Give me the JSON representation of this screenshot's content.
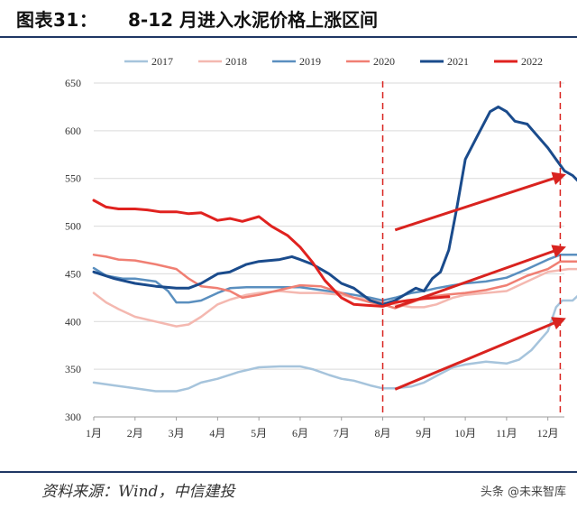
{
  "header": {
    "figure_label": "图表31：",
    "title": "8-12 月进入水泥价格上涨区间"
  },
  "footer": {
    "source": "资料来源：Wind，中信建投",
    "watermark": "头条 @未来智库"
  },
  "chart_data": {
    "type": "line",
    "title": "8-12 月进入水泥价格上涨区间",
    "xlabel": "",
    "ylabel": "",
    "ylim": [
      300,
      650
    ],
    "y_ticks": [
      300,
      350,
      400,
      450,
      500,
      550,
      600,
      650
    ],
    "x_range": [
      1,
      12.4
    ],
    "x_ticks": [
      {
        "x": 1,
        "label": "1月"
      },
      {
        "x": 2,
        "label": "2月"
      },
      {
        "x": 3,
        "label": "3月"
      },
      {
        "x": 4,
        "label": "4月"
      },
      {
        "x": 5,
        "label": "5月"
      },
      {
        "x": 6,
        "label": "6月"
      },
      {
        "x": 7,
        "label": "7月"
      },
      {
        "x": 8,
        "label": "8月"
      },
      {
        "x": 9,
        "label": "9月"
      },
      {
        "x": 10,
        "label": "10月"
      },
      {
        "x": 11,
        "label": "11月"
      },
      {
        "x": 12,
        "label": "12月"
      }
    ],
    "grid": "horizontal",
    "legend_position": "top",
    "series": [
      {
        "name": "2017",
        "color": "#a6c4dc",
        "width": 2.5,
        "points": [
          [
            1,
            336
          ],
          [
            1.5,
            333
          ],
          [
            2,
            330
          ],
          [
            2.5,
            327
          ],
          [
            3,
            327
          ],
          [
            3.3,
            330
          ],
          [
            3.6,
            336
          ],
          [
            4,
            340
          ],
          [
            4.5,
            347
          ],
          [
            5,
            352
          ],
          [
            5.5,
            353
          ],
          [
            6,
            353
          ],
          [
            6.3,
            350
          ],
          [
            6.7,
            344
          ],
          [
            7,
            340
          ],
          [
            7.3,
            338
          ],
          [
            7.7,
            333
          ],
          [
            8,
            330
          ],
          [
            8.3,
            330
          ],
          [
            8.7,
            332
          ],
          [
            9,
            336
          ],
          [
            9.3,
            343
          ],
          [
            9.7,
            352
          ],
          [
            10,
            355
          ],
          [
            10.5,
            358
          ],
          [
            11,
            356
          ],
          [
            11.3,
            360
          ],
          [
            11.6,
            370
          ],
          [
            12,
            390
          ],
          [
            12.2,
            415
          ],
          [
            12.35,
            422
          ],
          [
            12.6,
            422
          ],
          [
            12.8,
            430
          ]
        ]
      },
      {
        "name": "2018",
        "color": "#f4b8b0",
        "width": 2.5,
        "points": [
          [
            1,
            430
          ],
          [
            1.3,
            420
          ],
          [
            1.6,
            413
          ],
          [
            2,
            405
          ],
          [
            2.5,
            400
          ],
          [
            2.8,
            397
          ],
          [
            3,
            395
          ],
          [
            3.3,
            397
          ],
          [
            3.6,
            405
          ],
          [
            4,
            418
          ],
          [
            4.3,
            423
          ],
          [
            4.7,
            428
          ],
          [
            5,
            430
          ],
          [
            5.5,
            432
          ],
          [
            6,
            430
          ],
          [
            6.5,
            430
          ],
          [
            7,
            428
          ],
          [
            7.3,
            425
          ],
          [
            7.7,
            423
          ],
          [
            8,
            420
          ],
          [
            8.3,
            418
          ],
          [
            8.7,
            415
          ],
          [
            9,
            415
          ],
          [
            9.3,
            418
          ],
          [
            9.7,
            425
          ],
          [
            10,
            428
          ],
          [
            10.5,
            430
          ],
          [
            11,
            432
          ],
          [
            11.4,
            440
          ],
          [
            11.8,
            448
          ],
          [
            12,
            452
          ],
          [
            12.5,
            455
          ],
          [
            12.8,
            455
          ]
        ]
      },
      {
        "name": "2019",
        "color": "#5a8fbf",
        "width": 2.5,
        "points": [
          [
            1,
            456
          ],
          [
            1.3,
            448
          ],
          [
            1.7,
            445
          ],
          [
            2,
            445
          ],
          [
            2.5,
            442
          ],
          [
            2.8,
            432
          ],
          [
            3,
            420
          ],
          [
            3.3,
            420
          ],
          [
            3.6,
            422
          ],
          [
            4,
            430
          ],
          [
            4.3,
            435
          ],
          [
            4.7,
            436
          ],
          [
            5,
            436
          ],
          [
            5.5,
            436
          ],
          [
            6,
            436
          ],
          [
            6.5,
            433
          ],
          [
            7,
            430
          ],
          [
            7.3,
            428
          ],
          [
            7.7,
            425
          ],
          [
            8,
            422
          ],
          [
            8.3,
            425
          ],
          [
            8.7,
            430
          ],
          [
            9,
            432
          ],
          [
            9.3,
            435
          ],
          [
            9.7,
            438
          ],
          [
            10,
            440
          ],
          [
            10.5,
            442
          ],
          [
            11,
            446
          ],
          [
            11.5,
            455
          ],
          [
            12,
            465
          ],
          [
            12.3,
            470
          ],
          [
            12.8,
            470
          ]
        ]
      },
      {
        "name": "2020",
        "color": "#f07f73",
        "width": 2.5,
        "points": [
          [
            1,
            470
          ],
          [
            1.3,
            468
          ],
          [
            1.6,
            465
          ],
          [
            2,
            464
          ],
          [
            2.5,
            460
          ],
          [
            3,
            455
          ],
          [
            3.3,
            445
          ],
          [
            3.6,
            437
          ],
          [
            4,
            435
          ],
          [
            4.3,
            432
          ],
          [
            4.6,
            425
          ],
          [
            5,
            428
          ],
          [
            5.5,
            433
          ],
          [
            6,
            438
          ],
          [
            6.5,
            437
          ],
          [
            7,
            430
          ],
          [
            7.3,
            425
          ],
          [
            7.7,
            420
          ],
          [
            8,
            418
          ],
          [
            8.3,
            414
          ],
          [
            8.7,
            420
          ],
          [
            9,
            425
          ],
          [
            9.5,
            428
          ],
          [
            10,
            430
          ],
          [
            10.5,
            433
          ],
          [
            11,
            438
          ],
          [
            11.5,
            448
          ],
          [
            12,
            455
          ],
          [
            12.3,
            463
          ],
          [
            12.8,
            463
          ]
        ]
      },
      {
        "name": "2021",
        "color": "#1a4b8c",
        "width": 3,
        "points": [
          [
            1,
            452
          ],
          [
            1.5,
            445
          ],
          [
            2,
            440
          ],
          [
            2.5,
            437
          ],
          [
            3,
            435
          ],
          [
            3.3,
            435
          ],
          [
            3.6,
            440
          ],
          [
            4,
            450
          ],
          [
            4.3,
            452
          ],
          [
            4.7,
            460
          ],
          [
            5,
            463
          ],
          [
            5.5,
            465
          ],
          [
            5.8,
            468
          ],
          [
            6,
            465
          ],
          [
            6.3,
            460
          ],
          [
            6.7,
            450
          ],
          [
            7,
            440
          ],
          [
            7.3,
            435
          ],
          [
            7.7,
            422
          ],
          [
            8,
            418
          ],
          [
            8.3,
            422
          ],
          [
            8.6,
            430
          ],
          [
            8.8,
            435
          ],
          [
            9,
            432
          ],
          [
            9.2,
            445
          ],
          [
            9.4,
            452
          ],
          [
            9.6,
            475
          ],
          [
            9.8,
            520
          ],
          [
            10,
            570
          ],
          [
            10.3,
            595
          ],
          [
            10.6,
            620
          ],
          [
            10.8,
            625
          ],
          [
            11,
            620
          ],
          [
            11.2,
            610
          ],
          [
            11.5,
            607
          ],
          [
            11.8,
            592
          ],
          [
            12,
            582
          ],
          [
            12.2,
            570
          ],
          [
            12.4,
            558
          ],
          [
            12.6,
            553
          ],
          [
            12.9,
            540
          ]
        ]
      },
      {
        "name": "2022",
        "color": "#e0221f",
        "width": 3,
        "points": [
          [
            1,
            527
          ],
          [
            1.3,
            520
          ],
          [
            1.6,
            518
          ],
          [
            2,
            518
          ],
          [
            2.3,
            517
          ],
          [
            2.6,
            515
          ],
          [
            3,
            515
          ],
          [
            3.3,
            513
          ],
          [
            3.6,
            514
          ],
          [
            4,
            506
          ],
          [
            4.3,
            508
          ],
          [
            4.6,
            505
          ],
          [
            5,
            510
          ],
          [
            5.3,
            500
          ],
          [
            5.7,
            490
          ],
          [
            6,
            478
          ],
          [
            6.3,
            462
          ],
          [
            6.6,
            443
          ],
          [
            7,
            425
          ],
          [
            7.3,
            418
          ],
          [
            7.6,
            417
          ],
          [
            8,
            416
          ],
          [
            8.3,
            420
          ],
          [
            8.6,
            422
          ],
          [
            9,
            424
          ],
          [
            9.3,
            425
          ],
          [
            9.6,
            426
          ]
        ]
      }
    ],
    "annotations": {
      "vlines": [
        8,
        12.3
      ],
      "arrows": [
        {
          "from": [
            8.3,
            496
          ],
          "to": [
            12.35,
            553
          ]
        },
        {
          "from": [
            8.3,
            415
          ],
          "to": [
            12.35,
            477
          ]
        },
        {
          "from": [
            8.3,
            329
          ],
          "to": [
            12.35,
            402
          ]
        }
      ]
    }
  }
}
